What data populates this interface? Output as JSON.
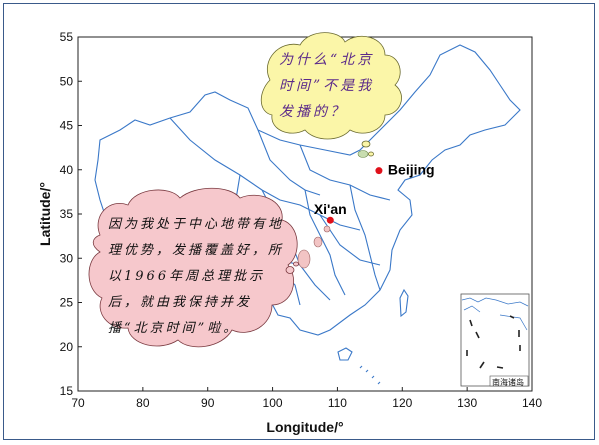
{
  "map": {
    "xlabel": "Longitude/°",
    "ylabel": "Latitude/°",
    "x_ticks": [
      "70",
      "80",
      "90",
      "100",
      "110",
      "120",
      "130",
      "140"
    ],
    "y_ticks": [
      "15",
      "20",
      "25",
      "30",
      "35",
      "40",
      "45",
      "50",
      "55"
    ],
    "x_range": [
      70,
      140
    ],
    "y_range": [
      15,
      55
    ],
    "cities": [
      {
        "name": "Beijing",
        "lon": 116.4,
        "lat": 39.9
      },
      {
        "name": "Xi'an",
        "lon": 108.9,
        "lat": 34.3
      }
    ],
    "bubble_top": {
      "text": "为什么“北京时间”不是我发播的？"
    },
    "bubble_left": {
      "text": "因为我处于中心地带有地理优势，发播覆盖好，所以1966年周总理批示后，就由我保持并发播“北京时间”啦。"
    },
    "inset_label": "南海诸岛",
    "colors": {
      "border_line": "#3a78c8",
      "city_dot": "#e0101a",
      "bubble_top_fill": "#fbf6a8",
      "bubble_top_text": "#5b2a8a",
      "bubble_left_fill": "#f6c8cc",
      "frame": "#3a5a8a"
    }
  }
}
